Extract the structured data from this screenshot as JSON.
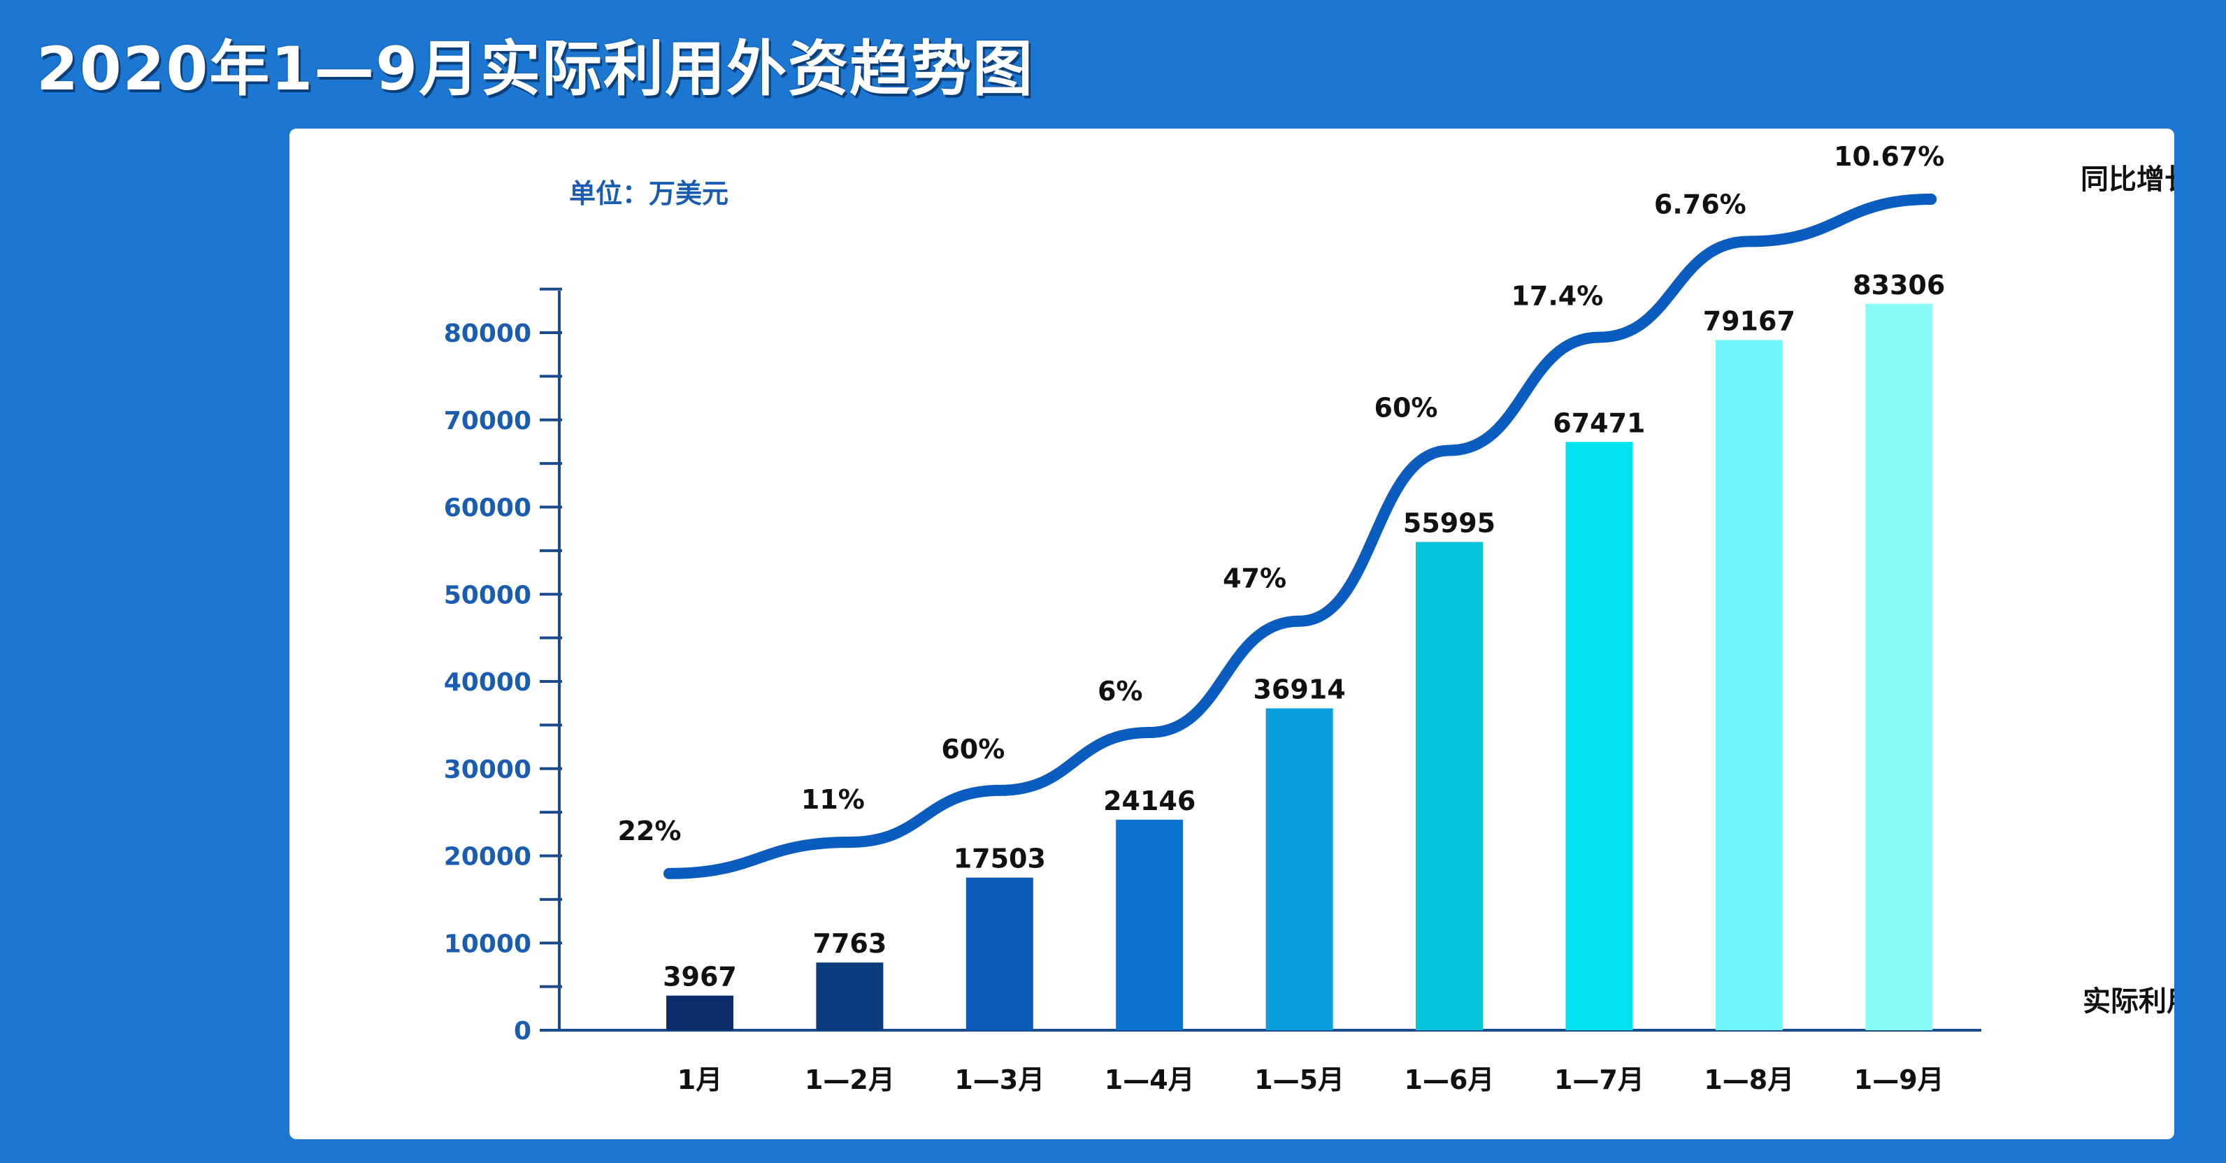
{
  "title": "2020年1—9月实际利用外资趋势图",
  "unit_label": "单位：万美元",
  "colors": {
    "background": "#1b77d2",
    "panel": "#ffffff",
    "line": "#0a5cbf",
    "axis": "#1a4a8a",
    "tick_text": "#1a5cb0",
    "bars": [
      "#0b2d6e",
      "#0a3c7e",
      "#0a5cb8",
      "#0a73cf",
      "#0aa0e0",
      "#07c4dc",
      "#00e2ee",
      "#71f6fb",
      "#88fbf6"
    ]
  },
  "chart_data": {
    "type": "bar",
    "categories": [
      "1月",
      "1—2月",
      "1—3月",
      "1—4月",
      "1—5月",
      "1—6月",
      "1—7月",
      "1—8月",
      "1—9月"
    ],
    "series": [
      {
        "name": "实际利用外资额",
        "type": "bar",
        "values": [
          3967,
          7763,
          17503,
          24146,
          36914,
          55995,
          67471,
          79167,
          83306
        ],
        "labels": [
          "3967",
          "7763",
          "17503",
          "24146",
          "36914",
          "55995",
          "67471",
          "79167",
          "83306"
        ]
      },
      {
        "name": "同比增长",
        "type": "line",
        "values": [
          22,
          11,
          60,
          6,
          47,
          60,
          17.4,
          6.76,
          10.67
        ],
        "labels": [
          "22%",
          "11%",
          "60%",
          "6%",
          "47%",
          "60%",
          "17.4%",
          "6.76%",
          "10.67%"
        ]
      }
    ],
    "ylim": [
      0,
      80000
    ],
    "yticks": [
      "0",
      "10000",
      "20000",
      "30000",
      "40000",
      "50000",
      "60000",
      "70000",
      "80000"
    ],
    "grid": false
  }
}
